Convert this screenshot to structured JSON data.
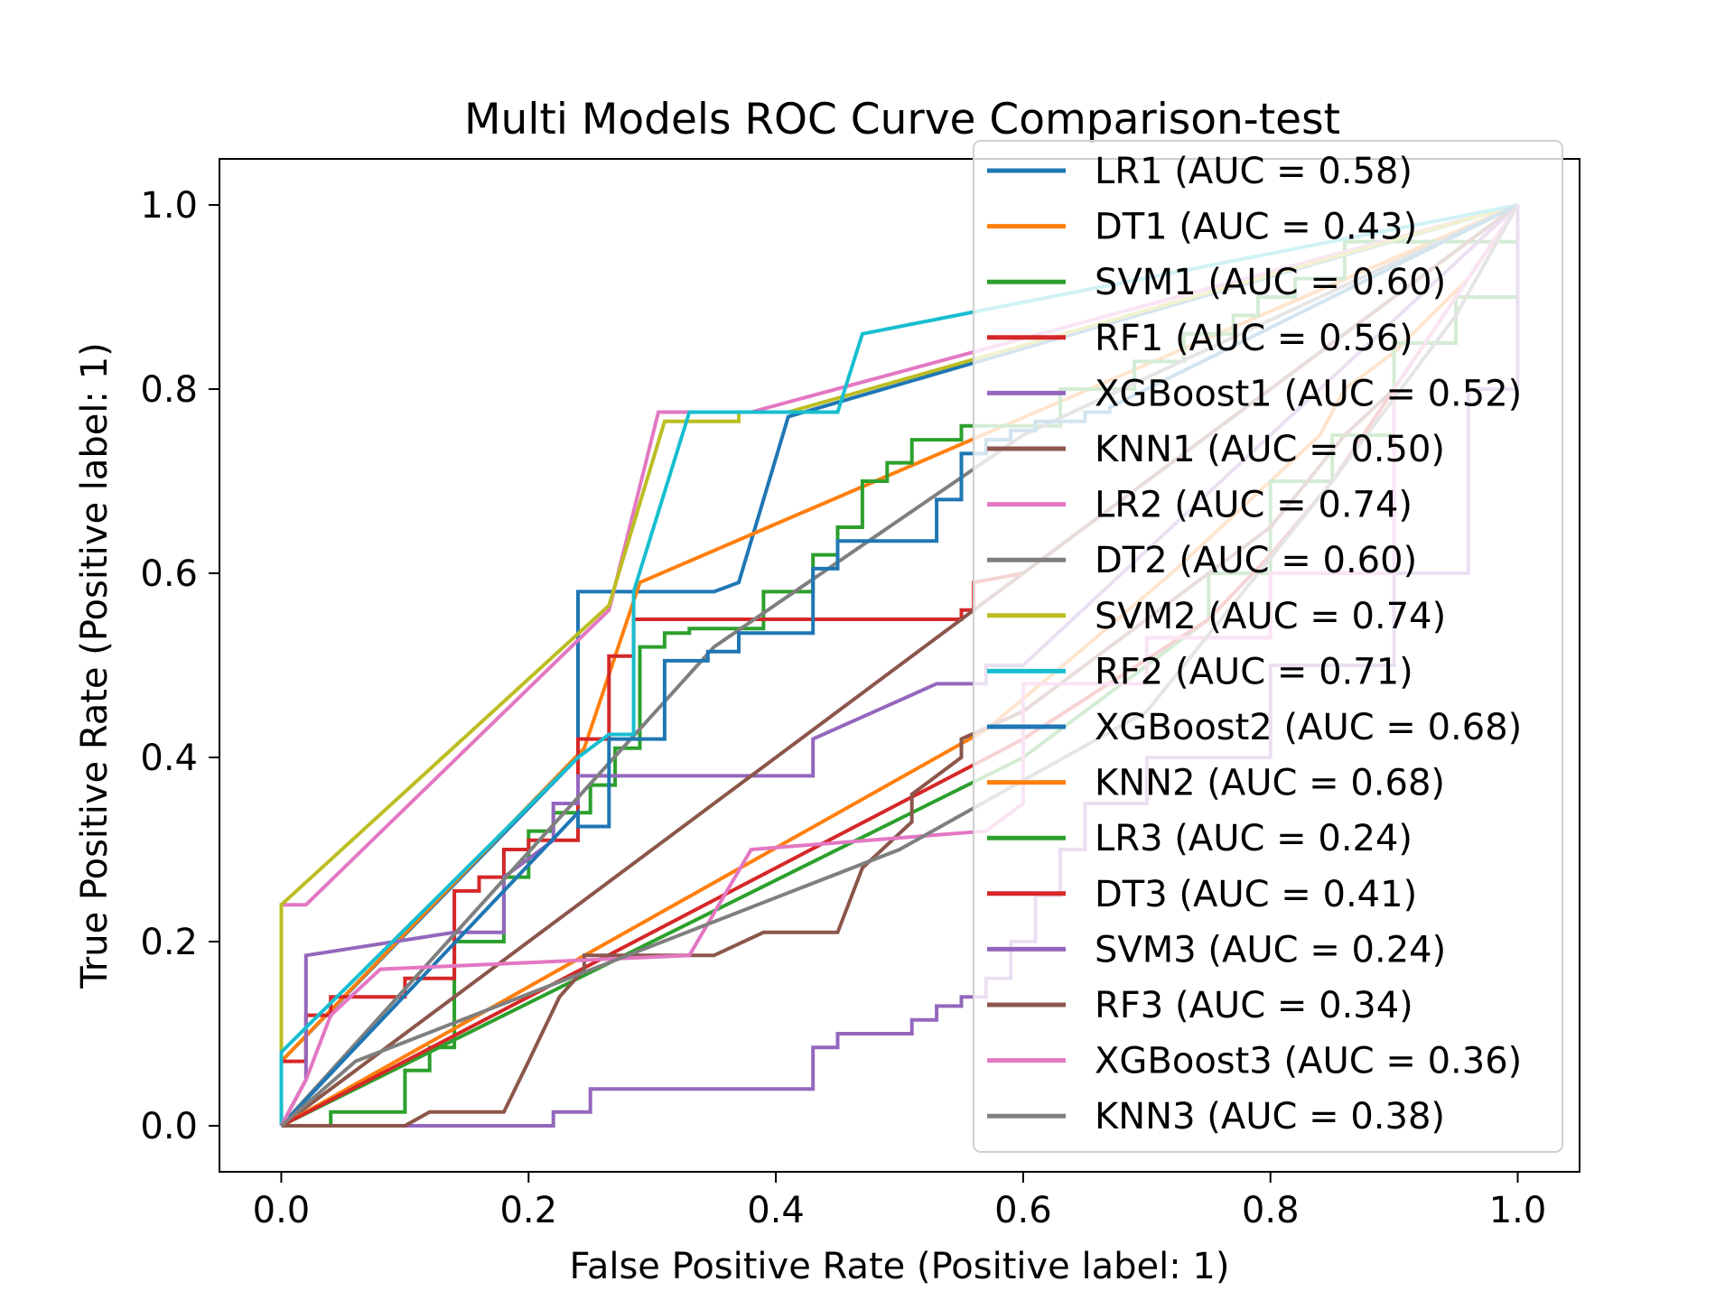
{
  "chart_data": {
    "type": "line",
    "title": "Multi Models ROC Curve Comparison-test",
    "xlabel": "False Positive Rate (Positive label: 1)",
    "ylabel": "True Positive Rate (Positive label: 1)",
    "xlim": [
      -0.05,
      1.05
    ],
    "ylim": [
      -0.05,
      1.05
    ],
    "xticks": [
      "0.0",
      "0.2",
      "0.4",
      "0.6",
      "0.8",
      "1.0"
    ],
    "yticks": [
      "0.0",
      "0.2",
      "0.4",
      "0.6",
      "0.8",
      "1.0"
    ],
    "grid": false,
    "legend_position": "top-right",
    "series": [
      {
        "name": "LR1 (AUC = 0.58)",
        "color": "#1f77b4",
        "x": [
          0,
          0,
          0.24,
          0.24,
          0.35,
          0.37,
          0.41,
          1.0
        ],
        "y": [
          0,
          0.07,
          0.4,
          0.58,
          0.58,
          0.59,
          0.77,
          1.0
        ]
      },
      {
        "name": "DT1 (AUC = 0.43)",
        "color": "#ff7f0e",
        "x": [
          0,
          0,
          0.245,
          0.29,
          1.0
        ],
        "y": [
          0,
          0.07,
          0.41,
          0.59,
          1.0
        ]
      },
      {
        "name": "SVM1 (AUC = 0.60)",
        "color": "#2ca02c",
        "x": [
          0,
          0.04,
          0.04,
          0.1,
          0.1,
          0.12,
          0.12,
          0.14,
          0.14,
          0.18,
          0.18,
          0.2,
          0.2,
          0.22,
          0.22,
          0.25,
          0.25,
          0.27,
          0.27,
          0.29,
          0.29,
          0.31,
          0.31,
          0.33,
          0.33,
          0.39,
          0.39,
          0.43,
          0.43,
          0.45,
          0.45,
          0.47,
          0.47,
          0.49,
          0.49,
          0.51,
          0.51,
          0.55,
          0.55,
          0.63,
          0.63,
          0.69,
          0.69,
          0.73,
          0.73,
          0.77,
          0.77,
          0.79,
          0.79,
          0.82,
          0.82,
          0.86,
          0.86,
          1.0,
          1.0
        ],
        "y": [
          0,
          0,
          0.015,
          0.015,
          0.06,
          0.06,
          0.085,
          0.085,
          0.2,
          0.2,
          0.27,
          0.27,
          0.32,
          0.32,
          0.34,
          0.34,
          0.37,
          0.37,
          0.41,
          0.41,
          0.52,
          0.52,
          0.535,
          0.535,
          0.54,
          0.54,
          0.58,
          0.58,
          0.62,
          0.62,
          0.65,
          0.65,
          0.7,
          0.7,
          0.72,
          0.72,
          0.745,
          0.745,
          0.76,
          0.76,
          0.8,
          0.8,
          0.83,
          0.83,
          0.86,
          0.86,
          0.88,
          0.88,
          0.9,
          0.9,
          0.92,
          0.92,
          0.96,
          0.96,
          1.0
        ]
      },
      {
        "name": "RF1 (AUC = 0.56)",
        "color": "#d62728",
        "x": [
          0,
          0,
          0.02,
          0.02,
          0.04,
          0.04,
          0.06,
          0.06,
          0.1,
          0.1,
          0.14,
          0.14,
          0.16,
          0.16,
          0.18,
          0.18,
          0.2,
          0.2,
          0.24,
          0.24,
          0.265,
          0.265,
          0.285,
          0.285,
          0.55,
          0.55,
          0.56,
          0.56,
          0.6,
          1.0
        ],
        "y": [
          0,
          0.07,
          0.07,
          0.12,
          0.12,
          0.14,
          0.14,
          0.14,
          0.14,
          0.16,
          0.16,
          0.255,
          0.255,
          0.27,
          0.27,
          0.3,
          0.3,
          0.31,
          0.31,
          0.42,
          0.42,
          0.51,
          0.51,
          0.55,
          0.55,
          0.56,
          0.56,
          0.59,
          0.6,
          1.0
        ]
      },
      {
        "name": "XGBoost1 (AUC = 0.52)",
        "color": "#9467bd",
        "x": [
          0,
          0.02,
          0.02,
          0.14,
          0.14,
          0.18,
          0.18,
          0.22,
          0.22,
          0.24,
          0.24,
          0.43,
          0.43,
          0.53,
          0.53,
          0.57,
          0.57,
          0.6,
          1.0
        ],
        "y": [
          0,
          0.05,
          0.185,
          0.21,
          0.21,
          0.21,
          0.27,
          0.31,
          0.35,
          0.35,
          0.38,
          0.38,
          0.42,
          0.48,
          0.48,
          0.48,
          0.5,
          0.5,
          1.0
        ]
      },
      {
        "name": "KNN1 (AUC = 0.50)",
        "color": "#8c564b",
        "x": [
          0,
          1.0
        ],
        "y": [
          0,
          1.0
        ]
      },
      {
        "name": "LR2 (AUC = 0.74)",
        "color": "#e377c2",
        "x": [
          0,
          0,
          0.02,
          0.265,
          0.305,
          0.38,
          1.0
        ],
        "y": [
          0,
          0.24,
          0.24,
          0.56,
          0.775,
          0.775,
          1.0
        ]
      },
      {
        "name": "DT2 (AUC = 0.60)",
        "color": "#7f7f7f",
        "x": [
          0,
          0.35,
          0.6,
          1.0
        ],
        "y": [
          0,
          0.52,
          0.75,
          1.0
        ]
      },
      {
        "name": "SVM2 (AUC = 0.74)",
        "color": "#bcbd22",
        "x": [
          0,
          0,
          0.265,
          0.31,
          0.37,
          0.37,
          0.41,
          1.0
        ],
        "y": [
          0,
          0.24,
          0.565,
          0.765,
          0.765,
          0.775,
          0.775,
          1.0
        ]
      },
      {
        "name": "RF2 (AUC = 0.71)",
        "color": "#17becf",
        "x": [
          0,
          0,
          0.24,
          0.265,
          0.285,
          0.285,
          0.33,
          0.45,
          0.47,
          1.0
        ],
        "y": [
          0,
          0.08,
          0.4,
          0.425,
          0.425,
          0.58,
          0.775,
          0.775,
          0.86,
          1.0
        ]
      },
      {
        "name": "XGBoost2 (AUC = 0.68)",
        "color": "#1f77b4",
        "x": [
          0,
          0.24,
          0.24,
          0.265,
          0.265,
          0.31,
          0.31,
          0.345,
          0.345,
          0.37,
          0.37,
          0.43,
          0.43,
          0.45,
          0.45,
          0.47,
          0.47,
          0.53,
          0.53,
          0.55,
          0.55,
          0.57,
          0.57,
          0.59,
          0.59,
          0.61,
          0.61,
          0.65,
          0.65,
          0.67,
          0.67,
          0.7,
          1.0
        ],
        "y": [
          0,
          0.34,
          0.325,
          0.325,
          0.42,
          0.42,
          0.505,
          0.505,
          0.515,
          0.515,
          0.535,
          0.535,
          0.605,
          0.605,
          0.635,
          0.635,
          0.635,
          0.635,
          0.68,
          0.68,
          0.73,
          0.73,
          0.745,
          0.745,
          0.755,
          0.755,
          0.765,
          0.765,
          0.775,
          0.775,
          0.78,
          0.8,
          1.0
        ]
      },
      {
        "name": "KNN2 (AUC = 0.68)",
        "color": "#ff7f0e",
        "x": [
          0,
          0.57,
          0.65,
          0.72,
          0.84,
          0.86,
          0.9,
          0.96,
          1.0
        ],
        "y": [
          0,
          0.43,
          0.52,
          0.6,
          0.75,
          0.8,
          0.84,
          0.92,
          1.0
        ]
      },
      {
        "name": "LR3 (AUC = 0.24)",
        "color": "#2ca02c",
        "x": [
          0,
          0.6,
          0.75,
          0.75,
          0.8,
          0.8,
          0.85,
          0.85,
          0.9,
          0.9,
          0.95,
          0.95,
          1.0,
          1.0
        ],
        "y": [
          0,
          0.4,
          0.55,
          0.6,
          0.6,
          0.7,
          0.7,
          0.75,
          0.75,
          0.85,
          0.85,
          0.9,
          0.9,
          1.0
        ]
      },
      {
        "name": "DT3 (AUC = 0.41)",
        "color": "#d62728",
        "x": [
          0,
          0.6,
          0.75,
          0.8,
          0.85,
          0.9,
          1.0
        ],
        "y": [
          0,
          0.42,
          0.55,
          0.62,
          0.7,
          0.8,
          1.0
        ]
      },
      {
        "name": "SVM3 (AUC = 0.24)",
        "color": "#9467bd",
        "x": [
          0,
          0.22,
          0.22,
          0.25,
          0.25,
          0.43,
          0.43,
          0.45,
          0.45,
          0.51,
          0.51,
          0.53,
          0.53,
          0.55,
          0.55,
          0.57,
          0.57,
          0.59,
          0.59,
          0.61,
          0.61,
          0.63,
          0.63,
          0.65,
          0.65,
          0.7,
          0.7,
          0.8,
          0.8,
          0.9,
          0.9,
          0.96,
          0.96,
          1.0,
          1.0
        ],
        "y": [
          0,
          0,
          0.015,
          0.015,
          0.04,
          0.04,
          0.085,
          0.085,
          0.1,
          0.1,
          0.115,
          0.115,
          0.13,
          0.13,
          0.14,
          0.14,
          0.16,
          0.16,
          0.2,
          0.2,
          0.25,
          0.25,
          0.3,
          0.3,
          0.35,
          0.35,
          0.4,
          0.4,
          0.5,
          0.5,
          0.6,
          0.6,
          0.8,
          0.8,
          1.0
        ]
      },
      {
        "name": "RF3 (AUC = 0.34)",
        "color": "#8c564b",
        "x": [
          0,
          0.1,
          0.12,
          0.18,
          0.2,
          0.225,
          0.245,
          0.245,
          0.35,
          0.39,
          0.45,
          0.47,
          0.51,
          0.51,
          0.55,
          0.55,
          0.6,
          0.7,
          0.8,
          0.86,
          0.9,
          0.95,
          1.0
        ],
        "y": [
          0,
          0,
          0.015,
          0.015,
          0.07,
          0.14,
          0.17,
          0.185,
          0.185,
          0.21,
          0.21,
          0.28,
          0.33,
          0.36,
          0.4,
          0.42,
          0.45,
          0.55,
          0.65,
          0.75,
          0.8,
          0.9,
          1.0
        ]
      },
      {
        "name": "XGBoost3 (AUC = 0.36)",
        "color": "#e377c2",
        "x": [
          0,
          0.02,
          0.04,
          0.08,
          0.33,
          0.38,
          0.57,
          0.6,
          0.6,
          0.7,
          0.7,
          0.8,
          0.8,
          0.9,
          0.9,
          1.0
        ],
        "y": [
          0,
          0.05,
          0.12,
          0.17,
          0.185,
          0.3,
          0.32,
          0.35,
          0.48,
          0.48,
          0.53,
          0.53,
          0.6,
          0.6,
          0.8,
          1.0
        ]
      },
      {
        "name": "KNN3 (AUC = 0.38)",
        "color": "#7f7f7f",
        "x": [
          0,
          0.06,
          0.5,
          0.7,
          0.85,
          0.95,
          1.0
        ],
        "y": [
          0,
          0.07,
          0.3,
          0.45,
          0.7,
          0.88,
          1.0
        ]
      }
    ]
  }
}
